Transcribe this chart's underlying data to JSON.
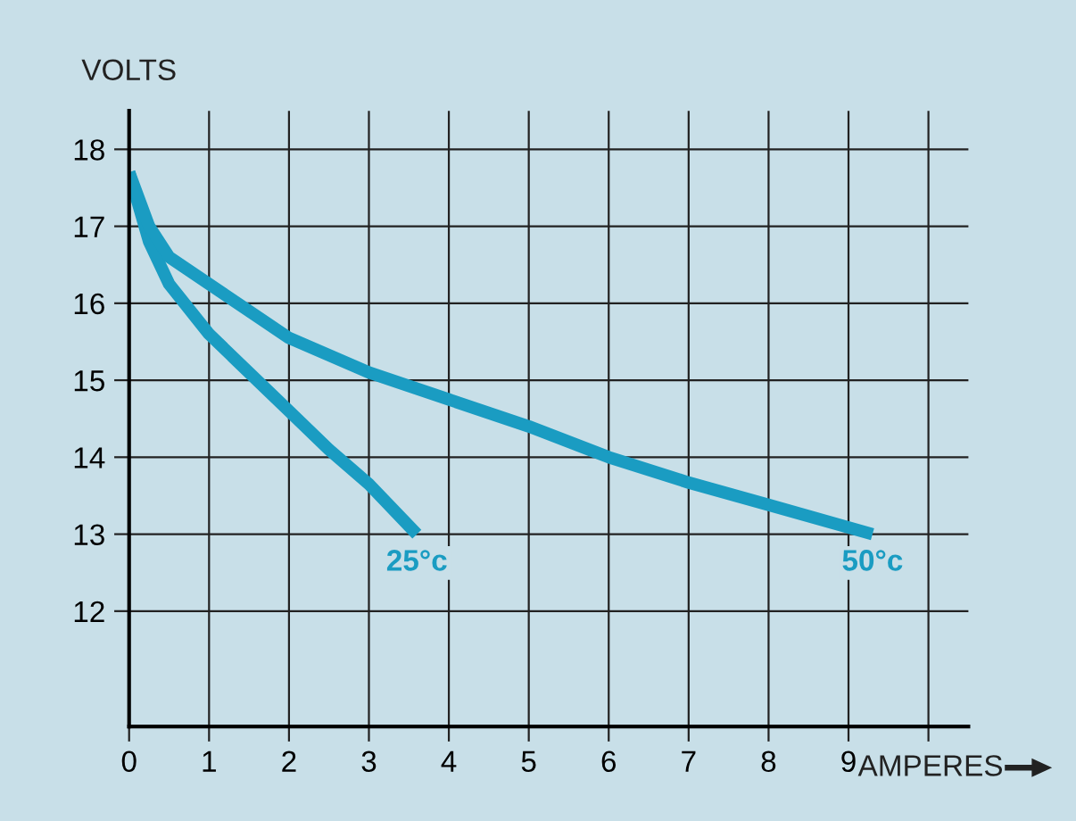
{
  "chart_data": {
    "type": "line",
    "xlabel": "AMPERES",
    "ylabel": "VOLTS",
    "xlim": [
      0,
      10.5
    ],
    "ylim": [
      10.5,
      18.5
    ],
    "xticks": [
      0,
      1,
      2,
      3,
      4,
      5,
      6,
      7,
      8,
      9,
      {
        "value": 10,
        "label": null
      }
    ],
    "yticks": [
      12,
      13,
      14,
      15,
      16,
      17,
      18
    ],
    "grid": true,
    "marker": "none",
    "line_style": "solid",
    "legend": false,
    "series": [
      {
        "name": "25°c",
        "color": "#1a9cc2",
        "x": [
          0,
          0.25,
          0.5,
          1,
          1.5,
          2,
          2.5,
          3,
          3.6
        ],
        "values": [
          17.7,
          16.8,
          16.25,
          15.6,
          15.1,
          14.6,
          14.1,
          13.65,
          13.0
        ]
      },
      {
        "name": "50°c",
        "color": "#1a9cc2",
        "x": [
          0,
          0.25,
          0.5,
          1,
          1.5,
          2,
          3,
          4,
          5,
          6,
          7,
          8,
          9.3
        ],
        "values": [
          17.7,
          17.0,
          16.6,
          16.25,
          15.9,
          15.55,
          15.1,
          14.75,
          14.4,
          14.0,
          13.67,
          13.38,
          13.0
        ]
      }
    ]
  }
}
